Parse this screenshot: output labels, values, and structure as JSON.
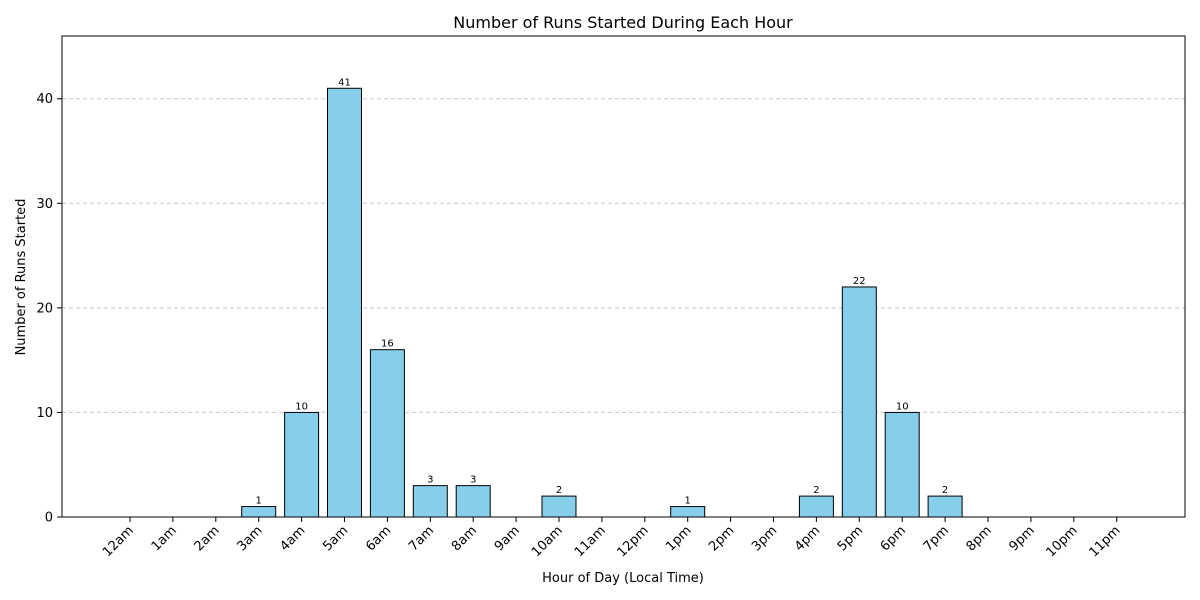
{
  "chart_data": {
    "type": "bar",
    "title": "Number of Runs Started During Each Hour",
    "xlabel": "Hour of Day (Local Time)",
    "ylabel": "Number of Runs Started",
    "categories": [
      "12am",
      "1am",
      "2am",
      "3am",
      "4am",
      "5am",
      "6am",
      "7am",
      "8am",
      "9am",
      "10am",
      "11am",
      "12pm",
      "1pm",
      "2pm",
      "3pm",
      "4pm",
      "5pm",
      "6pm",
      "7pm",
      "8pm",
      "9pm",
      "10pm",
      "11pm"
    ],
    "values": [
      0,
      0,
      0,
      1,
      10,
      41,
      16,
      3,
      3,
      0,
      2,
      0,
      0,
      1,
      0,
      0,
      2,
      22,
      10,
      2,
      0,
      0,
      0,
      0
    ],
    "ylim": [
      0,
      46
    ],
    "yticks": [
      0,
      10,
      20,
      30,
      40
    ],
    "grid": "y-dashed",
    "bar_color": "#87CEEB",
    "bar_edge_color": "#000000",
    "grid_color": "#c8c8c8",
    "show_value_labels_for_nonzero": true
  }
}
